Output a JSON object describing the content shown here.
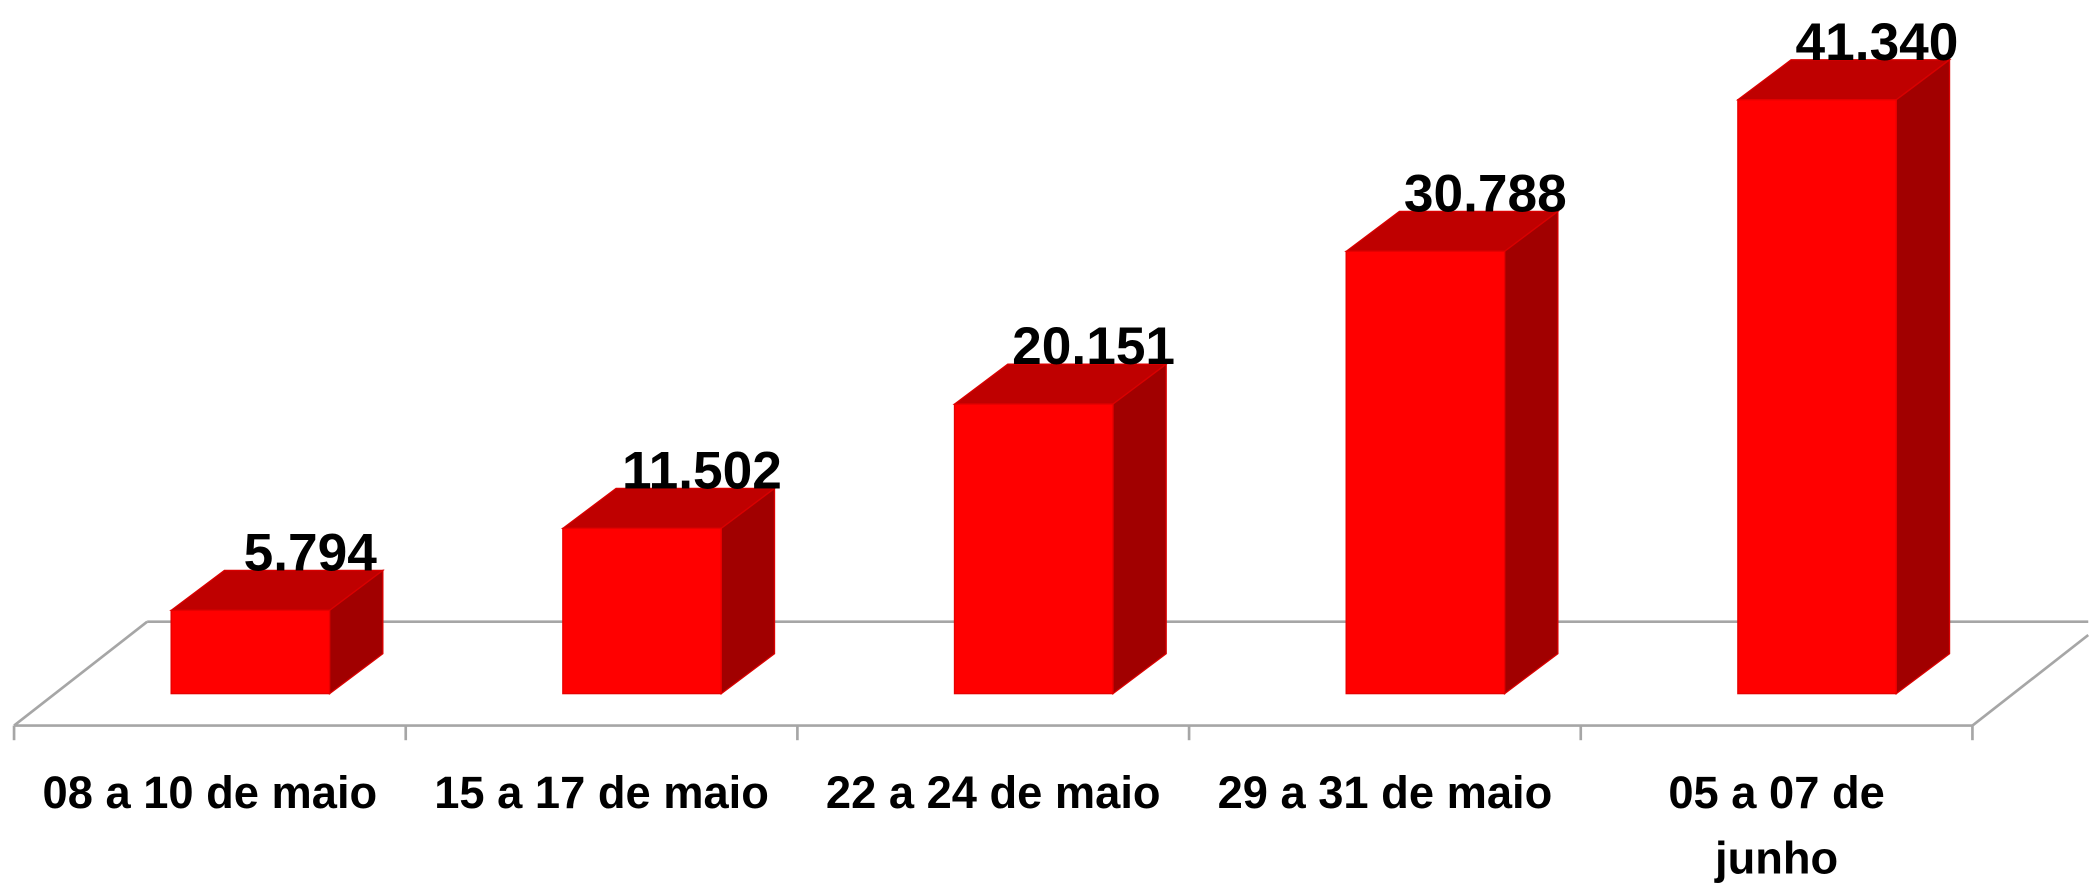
{
  "chart_data": {
    "type": "bar3d",
    "categories": [
      "08 a 10 de maio",
      "15 a 17 de maio",
      "22 a 24 de maio",
      "29 a 31 de maio",
      "05 a 07 de junho"
    ],
    "values": [
      5794,
      11502,
      20151,
      30788,
      41340
    ],
    "value_labels": [
      "5.794",
      "11.502",
      "20.151",
      "30.788",
      "41.340"
    ],
    "color": "#ff0000"
  }
}
